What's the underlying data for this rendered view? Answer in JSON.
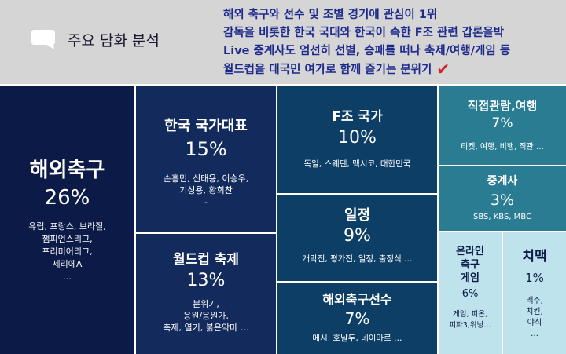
{
  "header": {
    "title": "주요 담화 분석",
    "lines": [
      "해외 축구와 선수 및 조별 경기에 관심이 1위",
      "감독을 비롯한 한국 국대와 한국이 속한 F조 관련 갑론을박",
      "Live 중계사도 엄선히 선별, 승패를 떠나 축제/여행/게임 등",
      "월드컵을 대국민 여가로 함께 즐기는 분위기"
    ]
  },
  "tiles": {
    "overseas": {
      "name": "해외축구",
      "pct": "26%",
      "items": "유럽, 프랑스, 브라질,\n챔피언스리그,\n프리미어리그,\n세리에A\n…",
      "color": "#0b1a47"
    },
    "korea": {
      "name": "한국 국가대표",
      "pct": "15%",
      "items": "손흥민, 신태용, 이승우,\n기성용, 황희찬\n-",
      "color": "#132a5c"
    },
    "wcfest": {
      "name": "월드컵 축제",
      "pct": "13%",
      "items": "분위기,\n응원/응원가,\n축제, 열기, 붉은악마 …",
      "color": "#132a5c"
    },
    "fgroup": {
      "name": "F조 국가",
      "pct": "10%",
      "items": "독일, 스웨덴, 멕시코, 대한민국",
      "color": "#0d3f66"
    },
    "schedule": {
      "name": "일정",
      "pct": "9%",
      "items": "개막전, 평가전, 일정, 출정식 …",
      "color": "#0d3f66"
    },
    "players": {
      "name": "해외축구선수",
      "pct": "7%",
      "items": "메시, 호날두, 네이마르 …",
      "color": "#0d3f66"
    },
    "travel": {
      "name": "직접관람,여행",
      "pct": "7%",
      "items": "티켓, 여행, 비행, 직관 …",
      "color": "#2a7c93"
    },
    "broadcast": {
      "name": "중계사",
      "pct": "3%",
      "items": "SBS, KBS, MBC",
      "color": "#2a7c93"
    },
    "game": {
      "name": "온라인\n축구\n게임",
      "pct": "6%",
      "items": "게임, 피온,\n피파3,위닝…",
      "color": "#bfe3ec"
    },
    "chimaek": {
      "name": "치맥",
      "pct": "1%",
      "items": "맥주,\n치킨,\n야식\n…",
      "color": "#bfe3ec"
    }
  }
}
